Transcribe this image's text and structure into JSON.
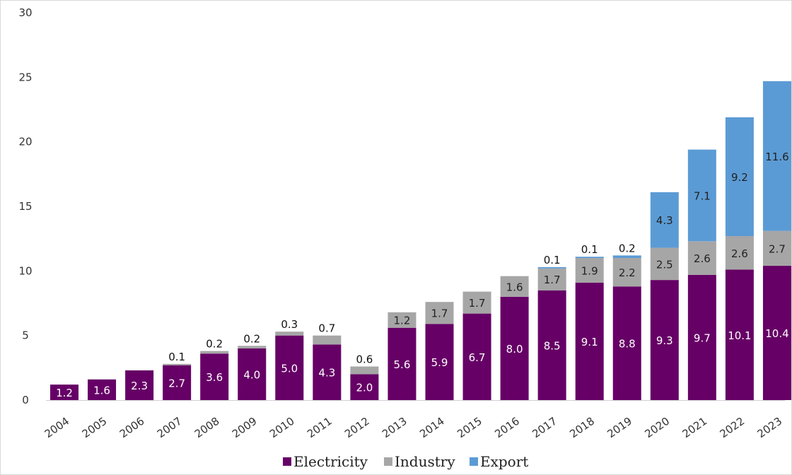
{
  "chart_data": {
    "type": "bar",
    "stacked": true,
    "categories": [
      "2004",
      "2005",
      "2006",
      "2007",
      "2008",
      "2009",
      "2010",
      "2011",
      "2012",
      "2013",
      "2014",
      "2015",
      "2016",
      "2017",
      "2018",
      "2019",
      "2020",
      "2021",
      "2022",
      "2023"
    ],
    "series": [
      {
        "name": "Electricity",
        "color": "#660066",
        "values": [
          1.2,
          1.6,
          2.3,
          2.7,
          3.6,
          4.0,
          5.0,
          4.3,
          2.0,
          5.6,
          5.9,
          6.7,
          8.0,
          8.5,
          9.1,
          8.8,
          9.3,
          9.7,
          10.1,
          10.4
        ]
      },
      {
        "name": "Industry",
        "color": "#a6a6a6",
        "values": [
          0,
          0,
          0,
          0.1,
          0.2,
          0.2,
          0.3,
          0.7,
          0.6,
          1.2,
          1.7,
          1.7,
          1.6,
          1.7,
          1.9,
          2.2,
          2.5,
          2.6,
          2.6,
          2.7
        ]
      },
      {
        "name": "Export",
        "color": "#5b9bd5",
        "values": [
          0,
          0,
          0,
          0,
          0,
          0,
          0,
          0,
          0,
          0,
          0,
          0,
          0,
          0.1,
          0.1,
          0.2,
          4.3,
          7.1,
          9.2,
          11.6
        ]
      }
    ],
    "ylim": [
      0,
      30
    ],
    "yticks": [
      "0",
      "5",
      "10",
      "15",
      "20",
      "25",
      "30"
    ],
    "grid": false,
    "legend_position": "bottom"
  }
}
